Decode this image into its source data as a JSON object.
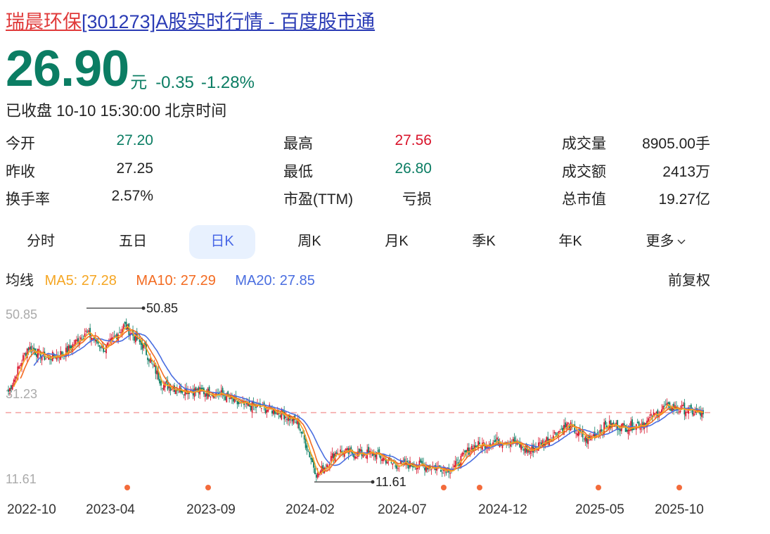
{
  "header": {
    "stock_name": "瑞晨环保",
    "title_rest": "[301273]A股实时行情 - 百度股市通"
  },
  "quote": {
    "price": "26.90",
    "unit": "元",
    "change": "-0.35",
    "change_pct": "-1.28%",
    "status": "已收盘 10-10 15:30:00 北京时间"
  },
  "stats": [
    {
      "label": "今开",
      "value": "27.20",
      "color": "green"
    },
    {
      "label": "昨收",
      "value": "27.25",
      "color": "dark"
    },
    {
      "label": "换手率",
      "value": "2.57%",
      "color": "dark"
    },
    {
      "label": "最高",
      "value": "27.56",
      "color": "red"
    },
    {
      "label": "最低",
      "value": "26.80",
      "color": "green"
    },
    {
      "label": "市盈(TTM)",
      "value": "亏损",
      "color": "dark"
    },
    {
      "label": "成交量",
      "value": "8905.00手",
      "color": "dark"
    },
    {
      "label": "成交额",
      "value": "2413万",
      "color": "dark"
    },
    {
      "label": "总市值",
      "value": "19.27亿",
      "color": "dark"
    }
  ],
  "tabs": [
    {
      "label": "分时",
      "active": false
    },
    {
      "label": "五日",
      "active": false
    },
    {
      "label": "日K",
      "active": true
    },
    {
      "label": "周K",
      "active": false
    },
    {
      "label": "月K",
      "active": false
    },
    {
      "label": "季K",
      "active": false
    },
    {
      "label": "年K",
      "active": false
    },
    {
      "label": "更多",
      "active": false
    }
  ],
  "ma": {
    "label": "均线",
    "ma5": "MA5: 27.28",
    "ma10": "MA10: 27.29",
    "ma20": "MA20: 27.85",
    "colors": {
      "ma5": "#f5a623",
      "ma10": "#f36b21",
      "ma20": "#4a6ee0"
    }
  },
  "adjust": "前复权",
  "colors": {
    "up": "#d9142b",
    "down": "#0b7d63",
    "accent": "#4867e6",
    "ref_line": "#f4a0a0",
    "marker": "#f36b3b"
  },
  "chart_data": {
    "type": "candlestick",
    "title": "日K",
    "ylabels": [
      "50.85",
      "31.23",
      "11.61"
    ],
    "ylim": [
      11.61,
      50.85
    ],
    "reference_price": 27.25,
    "max_annotation": {
      "value": "50.85",
      "date": "2023-04"
    },
    "min_annotation": {
      "value": "11.61",
      "date": "2024-02"
    },
    "x_ticks": [
      "2022-10",
      "2023-04",
      "2023-09",
      "2024-02",
      "2024-07",
      "2024-12",
      "2025-05",
      "2025-10"
    ],
    "series": [
      {
        "name": "MA5",
        "value": 27.28
      },
      {
        "name": "MA10",
        "value": 27.29
      },
      {
        "name": "MA20",
        "value": 27.85
      }
    ],
    "close_waypoints": [
      {
        "date": "2022-10",
        "close": 32.0
      },
      {
        "date": "2022-11",
        "close": 42.0
      },
      {
        "date": "2022-12",
        "close": 39.5
      },
      {
        "date": "2023-01",
        "close": 41.0
      },
      {
        "date": "2023-02",
        "close": 45.5
      },
      {
        "date": "2023-03",
        "close": 41.5
      },
      {
        "date": "2023-04",
        "close": 47.0
      },
      {
        "date": "2023-05",
        "close": 42.0
      },
      {
        "date": "2023-06",
        "close": 33.5
      },
      {
        "date": "2023-07",
        "close": 32.5
      },
      {
        "date": "2023-08",
        "close": 32.0
      },
      {
        "date": "2023-09",
        "close": 31.5
      },
      {
        "date": "2023-10",
        "close": 29.0
      },
      {
        "date": "2023-11",
        "close": 28.5
      },
      {
        "date": "2023-12",
        "close": 27.5
      },
      {
        "date": "2024-01",
        "close": 25.0
      },
      {
        "date": "2024-02",
        "close": 13.0
      },
      {
        "date": "2024-03",
        "close": 18.5
      },
      {
        "date": "2024-04",
        "close": 18.0
      },
      {
        "date": "2024-05",
        "close": 18.0
      },
      {
        "date": "2024-06",
        "close": 15.5
      },
      {
        "date": "2024-07",
        "close": 15.5
      },
      {
        "date": "2024-08",
        "close": 15.0
      },
      {
        "date": "2024-09",
        "close": 14.5
      },
      {
        "date": "2024-10",
        "close": 19.5
      },
      {
        "date": "2024-11",
        "close": 20.5
      },
      {
        "date": "2024-12",
        "close": 21.0
      },
      {
        "date": "2025-01",
        "close": 18.5
      },
      {
        "date": "2025-02",
        "close": 21.5
      },
      {
        "date": "2025-03",
        "close": 24.5
      },
      {
        "date": "2025-04",
        "close": 21.0
      },
      {
        "date": "2025-05",
        "close": 24.5
      },
      {
        "date": "2025-06",
        "close": 24.0
      },
      {
        "date": "2025-07",
        "close": 25.0
      },
      {
        "date": "2025-08",
        "close": 28.5
      },
      {
        "date": "2025-09",
        "close": 28.0
      },
      {
        "date": "2025-10",
        "close": 26.9
      }
    ],
    "event_markers": [
      "2023-04",
      "2023-09",
      "2024-08",
      "2024-10",
      "2025-05",
      "2025-10"
    ]
  }
}
